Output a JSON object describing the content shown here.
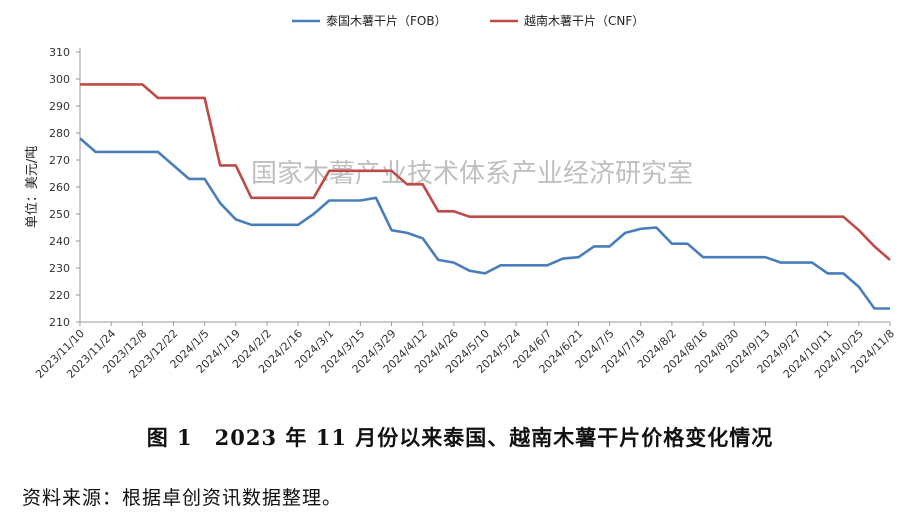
{
  "chart_data": {
    "type": "line",
    "title": "",
    "xlabel": "",
    "ylabel": "单位：美元/吨",
    "ylim": [
      210,
      310
    ],
    "yticks": [
      210,
      220,
      230,
      240,
      250,
      260,
      270,
      280,
      290,
      300,
      310
    ],
    "xtick_labels": [
      "2023/11/10",
      "2023/11/24",
      "2023/12/8",
      "2023/12/22",
      "2024/1/5",
      "2024/1/19",
      "2024/2/2",
      "2024/2/16",
      "2024/3/1",
      "2024/3/15",
      "2024/3/29",
      "2024/4/12",
      "2024/4/26",
      "2024/5/10",
      "2024/5/24",
      "2024/6/7",
      "2024/6/21",
      "2024/7/5",
      "2024/7/19",
      "2024/8/2",
      "2024/8/16",
      "2024/8/30",
      "2024/9/13",
      "2024/9/27",
      "2024/10/11",
      "2024/10/25",
      "2024/11/8"
    ],
    "grid": "none",
    "legend_position": "top-center",
    "watermark": "国家木薯产业技术体系产业经济研究室",
    "series": [
      {
        "name": "泰国木薯干片（FOB）",
        "color": "#4a7ebb",
        "points": [
          [
            "2023/11/10",
            278
          ],
          [
            "2023/11/17",
            273
          ],
          [
            "2023/11/24",
            273
          ],
          [
            "2023/12/1",
            273
          ],
          [
            "2023/12/8",
            273
          ],
          [
            "2023/12/15",
            273
          ],
          [
            "2023/12/22",
            268
          ],
          [
            "2023/12/29",
            263
          ],
          [
            "2024/1/5",
            263
          ],
          [
            "2024/1/12",
            254
          ],
          [
            "2024/1/19",
            248
          ],
          [
            "2024/1/26",
            246
          ],
          [
            "2024/2/2",
            246
          ],
          [
            "2024/2/9",
            246
          ],
          [
            "2024/2/16",
            246
          ],
          [
            "2024/2/23",
            250
          ],
          [
            "2024/3/1",
            255
          ],
          [
            "2024/3/8",
            255
          ],
          [
            "2024/3/15",
            255
          ],
          [
            "2024/3/22",
            256
          ],
          [
            "2024/3/29",
            244
          ],
          [
            "2024/4/5",
            243
          ],
          [
            "2024/4/12",
            241
          ],
          [
            "2024/4/19",
            233
          ],
          [
            "2024/4/26",
            232
          ],
          [
            "2024/5/3",
            229
          ],
          [
            "2024/5/10",
            228
          ],
          [
            "2024/5/17",
            231
          ],
          [
            "2024/5/24",
            231
          ],
          [
            "2024/5/31",
            231
          ],
          [
            "2024/6/7",
            231
          ],
          [
            "2024/6/14",
            233.5
          ],
          [
            "2024/6/21",
            234
          ],
          [
            "2024/6/28",
            238
          ],
          [
            "2024/7/5",
            238
          ],
          [
            "2024/7/12",
            243
          ],
          [
            "2024/7/19",
            244.5
          ],
          [
            "2024/7/26",
            245
          ],
          [
            "2024/8/2",
            239
          ],
          [
            "2024/8/9",
            239
          ],
          [
            "2024/8/16",
            234
          ],
          [
            "2024/8/23",
            234
          ],
          [
            "2024/8/30",
            234
          ],
          [
            "2024/9/6",
            234
          ],
          [
            "2024/9/13",
            234
          ],
          [
            "2024/9/20",
            232
          ],
          [
            "2024/9/27",
            232
          ],
          [
            "2024/10/4",
            232
          ],
          [
            "2024/10/11",
            228
          ],
          [
            "2024/10/18",
            228
          ],
          [
            "2024/10/25",
            223
          ],
          [
            "2024/11/1",
            215
          ],
          [
            "2024/11/8",
            215
          ]
        ]
      },
      {
        "name": "越南木薯干片（CNF）",
        "color": "#be4b48",
        "points": [
          [
            "2023/11/10",
            298
          ],
          [
            "2023/11/17",
            298
          ],
          [
            "2023/11/24",
            298
          ],
          [
            "2023/12/1",
            298
          ],
          [
            "2023/12/8",
            298
          ],
          [
            "2023/12/15",
            293
          ],
          [
            "2023/12/22",
            293
          ],
          [
            "2023/12/29",
            293
          ],
          [
            "2024/1/5",
            293
          ],
          [
            "2024/1/12",
            268
          ],
          [
            "2024/1/19",
            268
          ],
          [
            "2024/1/26",
            256
          ],
          [
            "2024/2/2",
            256
          ],
          [
            "2024/2/9",
            256
          ],
          [
            "2024/2/16",
            256
          ],
          [
            "2024/2/23",
            256
          ],
          [
            "2024/3/1",
            266
          ],
          [
            "2024/3/8",
            266
          ],
          [
            "2024/3/15",
            266
          ],
          [
            "2024/3/22",
            266
          ],
          [
            "2024/3/29",
            266
          ],
          [
            "2024/4/5",
            261
          ],
          [
            "2024/4/12",
            261
          ],
          [
            "2024/4/19",
            251
          ],
          [
            "2024/4/26",
            251
          ],
          [
            "2024/5/3",
            249
          ],
          [
            "2024/5/10",
            249
          ],
          [
            "2024/5/17",
            249
          ],
          [
            "2024/5/24",
            249
          ],
          [
            "2024/5/31",
            249
          ],
          [
            "2024/6/7",
            249
          ],
          [
            "2024/6/14",
            249
          ],
          [
            "2024/6/21",
            249
          ],
          [
            "2024/6/28",
            249
          ],
          [
            "2024/7/5",
            249
          ],
          [
            "2024/7/12",
            249
          ],
          [
            "2024/7/19",
            249
          ],
          [
            "2024/7/26",
            249
          ],
          [
            "2024/8/2",
            249
          ],
          [
            "2024/8/9",
            249
          ],
          [
            "2024/8/16",
            249
          ],
          [
            "2024/8/23",
            249
          ],
          [
            "2024/8/30",
            249
          ],
          [
            "2024/9/6",
            249
          ],
          [
            "2024/9/13",
            249
          ],
          [
            "2024/9/20",
            249
          ],
          [
            "2024/9/27",
            249
          ],
          [
            "2024/10/4",
            249
          ],
          [
            "2024/10/11",
            249
          ],
          [
            "2024/10/18",
            249
          ],
          [
            "2024/10/25",
            244
          ],
          [
            "2024/11/1",
            238
          ],
          [
            "2024/11/8",
            233
          ]
        ]
      }
    ]
  },
  "caption": "图 1　2023 年 11 月份以来泰国、越南木薯干片价格变化情况",
  "source": "资料来源：根据卓创资讯数据整理。"
}
